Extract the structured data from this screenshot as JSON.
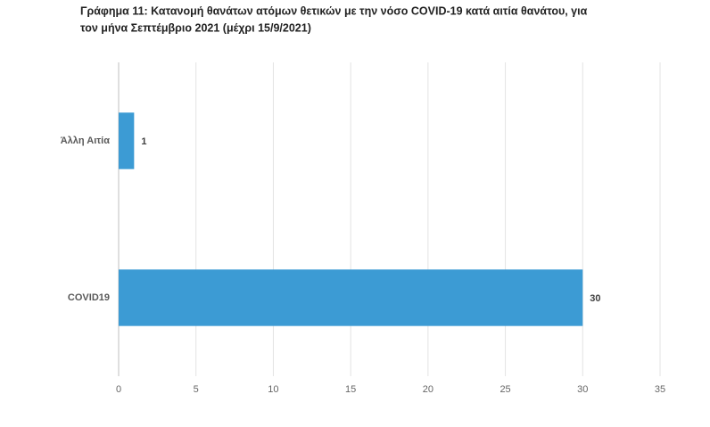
{
  "chart_data": {
    "type": "hbar",
    "title": [
      "Γράφημα 11: Κατανομή θανάτων ατόμων θετικών με την νόσο COVID-19 κατά αιτία θανάτου, για",
      "τον μήνα Σεπτέμβριο 2021 (μέχρι 15/9/2021)"
    ],
    "categories": [
      "Άλλη Αιτία",
      "COVID19"
    ],
    "values": [
      1,
      30
    ],
    "color": "#3c9bd4",
    "xlim": [
      0,
      35
    ],
    "xticks": [
      0,
      5,
      10,
      15,
      20,
      25,
      30,
      35
    ],
    "grid": true
  }
}
